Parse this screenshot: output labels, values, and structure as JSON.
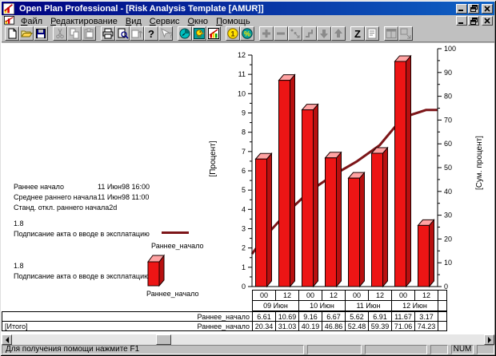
{
  "window": {
    "title": "Open Plan Professional - [Risk Analysis Template [AMUR]]"
  },
  "menu": {
    "items": [
      "Файл",
      "Редактирование",
      "Вид",
      "Сервис",
      "Окно",
      "Помощь"
    ]
  },
  "toolbar": {
    "buttons": [
      {
        "name": "new-document",
        "enabled": true
      },
      {
        "name": "open-folder",
        "enabled": true
      },
      {
        "name": "save",
        "enabled": true
      },
      {
        "name": "cut",
        "enabled": false
      },
      {
        "name": "copy",
        "enabled": false
      },
      {
        "name": "paste",
        "enabled": false
      },
      {
        "name": "print",
        "enabled": true
      },
      {
        "name": "print-preview",
        "enabled": true
      },
      {
        "name": "table-update",
        "enabled": false
      },
      {
        "name": "help",
        "enabled": true
      },
      {
        "name": "context-help",
        "enabled": false
      },
      {
        "name": "time-analysis",
        "enabled": true
      },
      {
        "name": "resource-analysis",
        "enabled": true
      },
      {
        "name": "risk-histogram",
        "enabled": true
      },
      {
        "name": "cost",
        "enabled": true
      },
      {
        "name": "percent-complete",
        "enabled": true
      },
      {
        "name": "add",
        "enabled": false
      },
      {
        "name": "remove",
        "enabled": false
      },
      {
        "name": "link",
        "enabled": false
      },
      {
        "name": "unlink",
        "enabled": false
      },
      {
        "name": "move-down",
        "enabled": false
      },
      {
        "name": "move-up",
        "enabled": false
      },
      {
        "name": "sort-z",
        "enabled": true
      },
      {
        "name": "notes",
        "enabled": false
      },
      {
        "name": "window-split",
        "enabled": false
      },
      {
        "name": "window-view",
        "enabled": false
      }
    ]
  },
  "stats": {
    "rows": [
      {
        "label": "Раннее начало",
        "value": "11 Июн98 16:00"
      },
      {
        "label": "Среднее раннего начала",
        "value": "11 Июн98 11:00"
      },
      {
        "label": "Станд. откл.  раннего начала",
        "value": "2d"
      }
    ]
  },
  "legend": [
    {
      "value": "1.8",
      "desc": "Подписание акта о вводе в эксплатацию",
      "series": "Раннее_начало",
      "marker": "line"
    },
    {
      "value": "1.8",
      "desc": "Подписание акта о вводе в эксплатацию",
      "series": "Раннее_начало",
      "marker": "bar"
    }
  ],
  "chart_data": {
    "type": "bar",
    "x_hours": [
      "00",
      "12",
      "00",
      "12",
      "00",
      "12",
      "00",
      "12"
    ],
    "x_days": [
      "09 Июн",
      "10 Июн",
      "11 Июн",
      "12 Июн"
    ],
    "series": [
      {
        "name": "Раннее_начало",
        "type": "bar",
        "axis": "left",
        "values": [
          6.61,
          10.69,
          9.16,
          6.67,
          5.62,
          6.91,
          11.67,
          3.17
        ]
      },
      {
        "name": "Раннее_начало",
        "type": "line",
        "axis": "right",
        "values": [
          20.34,
          31.03,
          40.19,
          46.86,
          52.48,
          59.39,
          71.06,
          74.23
        ],
        "line_start": 13.73
      }
    ],
    "ylabel_left": "[Процент]",
    "ylabel_right": "[Сум. процент]",
    "ylim_left": [
      0,
      12
    ],
    "ylim_right": [
      0,
      100
    ],
    "grid": false,
    "bar_color": "#ed1515",
    "bar_top_color": "#ffa3a3",
    "bar_side_color": "#b81010",
    "line_color": "#7c1518",
    "total_row_label": "[Итого]"
  },
  "statusbar": {
    "message": "Для получения помощи нажмите F1",
    "num": "NUM"
  }
}
